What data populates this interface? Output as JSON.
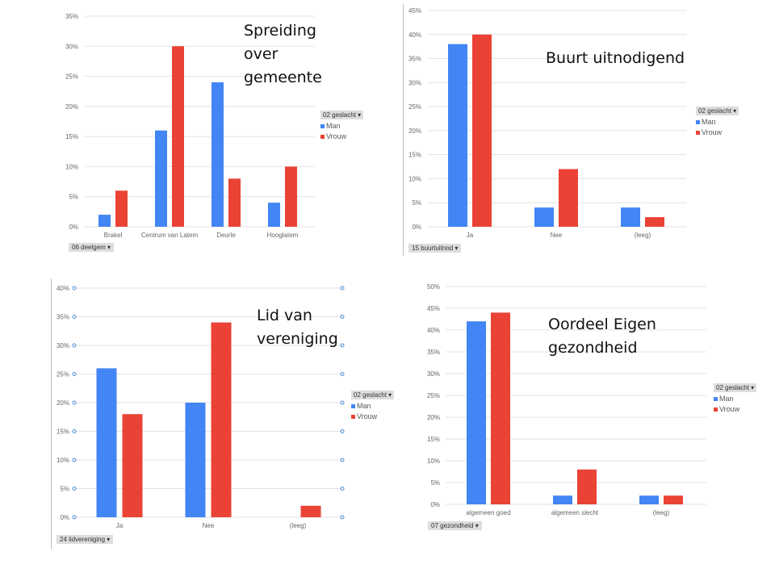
{
  "colors": {
    "man": "#4285f4",
    "vrouw": "#ea4335",
    "grid": "#e3e3e3",
    "axis_text": "#666"
  },
  "legend": {
    "header": "02 geslacht ▾",
    "man": "Man",
    "vrouw": "Vrouw"
  },
  "chart_data": [
    {
      "type": "bar",
      "title": "Spreiding\nover\ngemeente",
      "filter": "06 deelgem ▾",
      "categories": [
        "Brakel",
        "Centrum van Latem",
        "Deurle",
        "Hooglatem"
      ],
      "yticks": [
        "0%",
        "5%",
        "10%",
        "15%",
        "20%",
        "25%",
        "30%",
        "35%"
      ],
      "ylim": [
        0,
        35
      ],
      "series": [
        {
          "name": "Man",
          "values": [
            2,
            16,
            24,
            4
          ]
        },
        {
          "name": "Vrouw",
          "values": [
            6,
            30,
            8,
            10
          ]
        }
      ]
    },
    {
      "type": "bar",
      "title": "Buurt uitnodigend",
      "filter": "15 buurtuitnod ▾",
      "categories": [
        "Ja",
        "Nee",
        "(leeg)"
      ],
      "yticks": [
        "0%",
        "5%",
        "10%",
        "15%",
        "20%",
        "25%",
        "30%",
        "35%",
        "40%",
        "45%"
      ],
      "ylim": [
        0,
        45
      ],
      "series": [
        {
          "name": "Man",
          "values": [
            38,
            4,
            4
          ]
        },
        {
          "name": "Vrouw",
          "values": [
            40,
            12,
            2
          ]
        }
      ]
    },
    {
      "type": "bar",
      "title": "Lid van\nvereniging",
      "filter": "24 lidvereniging ▾",
      "categories": [
        "Ja",
        "Nee",
        "(leeg)"
      ],
      "yticks": [
        "0%",
        "5%",
        "10%",
        "15%",
        "20%",
        "25%",
        "30%",
        "35%",
        "40%"
      ],
      "ylim": [
        0,
        40
      ],
      "series": [
        {
          "name": "Man",
          "values": [
            26,
            20,
            0
          ]
        },
        {
          "name": "Vrouw",
          "values": [
            18,
            34,
            2
          ]
        }
      ]
    },
    {
      "type": "bar",
      "title": "Oordeel Eigen\ngezondheid",
      "filter": "07 gezondheid ▾",
      "categories": [
        "algemeen goed",
        "algemeen slecht",
        "(leeg)"
      ],
      "yticks": [
        "0%",
        "5%",
        "10%",
        "15%",
        "20%",
        "25%",
        "30%",
        "35%",
        "40%",
        "45%",
        "50%"
      ],
      "ylim": [
        0,
        50
      ],
      "series": [
        {
          "name": "Man",
          "values": [
            42,
            2,
            2
          ]
        },
        {
          "name": "Vrouw",
          "values": [
            44,
            8,
            2
          ]
        }
      ]
    }
  ]
}
